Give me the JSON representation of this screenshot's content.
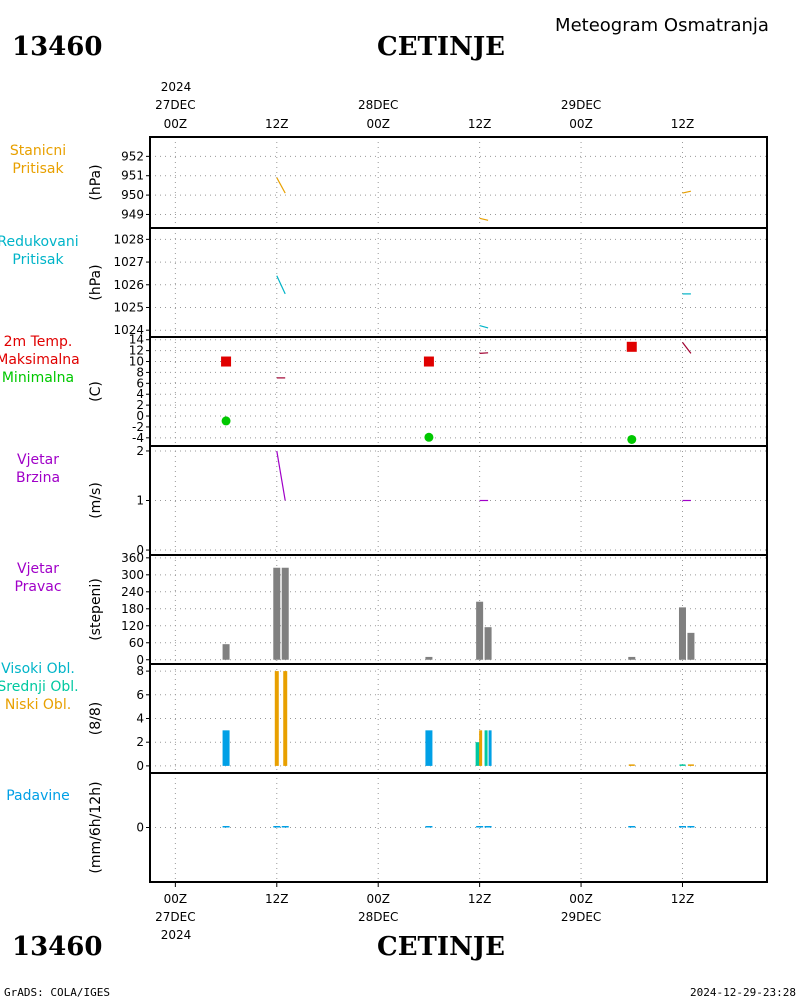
{
  "header": {
    "product": "Meteogram Osmatranja",
    "station_id": "13460",
    "station_name": "CETINJE"
  },
  "footer": {
    "station_id": "13460",
    "station_name": "CETINJE",
    "credit": "GrADS: COLA/IGES",
    "timestamp": "2024-12-29-23:28"
  },
  "time_axis": {
    "top_year": "2024",
    "bottom_year": "2024",
    "ticks": [
      {
        "t": 0,
        "label": "00Z",
        "date": "27DEC"
      },
      {
        "t": 12,
        "label": "12Z",
        "date": ""
      },
      {
        "t": 24,
        "label": "00Z",
        "date": "28DEC"
      },
      {
        "t": 36,
        "label": "12Z",
        "date": ""
      },
      {
        "t": 48,
        "label": "00Z",
        "date": "29DEC"
      },
      {
        "t": 60,
        "label": "12Z",
        "date": ""
      }
    ],
    "range_hours": [
      -3,
      70
    ]
  },
  "colors": {
    "orange": "#e8a000",
    "cyan": "#00b4c8",
    "red": "#e00000",
    "green": "#00c800",
    "purple": "#a000c8",
    "gray": "#808080",
    "blue": "#00a0e6",
    "teal": "#00c8a0"
  },
  "chart_data": [
    {
      "id": "station_pressure",
      "type": "line",
      "labels": [
        {
          "text": "Stanicni",
          "color": "#e8a000"
        },
        {
          "text": "Pritisak",
          "color": "#e8a000"
        }
      ],
      "ylabel": "(hPa)",
      "ylim": [
        948.3,
        953.0
      ],
      "yticks": [
        949,
        950,
        951,
        952
      ],
      "series": [
        {
          "color": "#e8a000",
          "segments": [
            [
              [
                12,
                950.9
              ],
              [
                13,
                950.1
              ]
            ],
            [
              [
                36,
                948.8
              ],
              [
                37,
                948.7
              ]
            ],
            [
              [
                60,
                950.1
              ],
              [
                61,
                950.2
              ]
            ]
          ]
        }
      ]
    },
    {
      "id": "reduced_pressure",
      "type": "line",
      "labels": [
        {
          "text": "Redukovani",
          "color": "#00b4c8"
        },
        {
          "text": "Pritisak",
          "color": "#00b4c8"
        }
      ],
      "ylabel": "(hPa)",
      "ylim": [
        1023.7,
        1028.5
      ],
      "yticks": [
        1024,
        1025,
        1026,
        1027,
        1028
      ],
      "series": [
        {
          "color": "#00b4c8",
          "segments": [
            [
              [
                12,
                1026.4
              ],
              [
                13,
                1025.6
              ]
            ],
            [
              [
                36,
                1024.2
              ],
              [
                37,
                1024.1
              ]
            ],
            [
              [
                60,
                1025.6
              ],
              [
                61,
                1025.6
              ]
            ]
          ]
        }
      ]
    },
    {
      "id": "temperature",
      "type": "line+markers",
      "labels": [
        {
          "text": "2m Temp.",
          "color": "#e00000"
        },
        {
          "text": "Maksimalna",
          "color": "#e00000"
        },
        {
          "text": "Minimalna",
          "color": "#00c800"
        }
      ],
      "ylabel": "(C)",
      "ylim": [
        -5.5,
        14.5
      ],
      "yticks": [
        -4,
        -2,
        0,
        2,
        4,
        6,
        8,
        10,
        12,
        14
      ],
      "series": [
        {
          "color": "#a00030",
          "segments": [
            [
              [
                12,
                7
              ],
              [
                13,
                7
              ]
            ],
            [
              [
                36,
                11.5
              ],
              [
                37,
                11.6
              ]
            ],
            [
              [
                60,
                13.5
              ],
              [
                61,
                11.5
              ]
            ]
          ]
        }
      ],
      "max": {
        "color": "#e00000",
        "points": [
          [
            6,
            10
          ],
          [
            30,
            10
          ],
          [
            54,
            12.7
          ]
        ]
      },
      "min": {
        "color": "#00c800",
        "points": [
          [
            6,
            -0.9
          ],
          [
            30,
            -3.9
          ],
          [
            54,
            -4.3
          ]
        ]
      }
    },
    {
      "id": "wind_speed",
      "type": "line",
      "labels": [
        {
          "text": "Vjetar",
          "color": "#a000c8"
        },
        {
          "text": "Brzina",
          "color": "#a000c8"
        }
      ],
      "ylabel": "(m/s)",
      "ylim": [
        -0.1,
        2.1
      ],
      "yticks": [
        0,
        1,
        2
      ],
      "series": [
        {
          "color": "#a000c8",
          "segments": [
            [
              [
                12,
                2
              ],
              [
                13,
                1
              ]
            ],
            [
              [
                36,
                1
              ],
              [
                37,
                1
              ]
            ],
            [
              [
                60,
                1
              ],
              [
                61,
                1
              ]
            ]
          ]
        }
      ]
    },
    {
      "id": "wind_direction",
      "type": "bar",
      "labels": [
        {
          "text": "Vjetar",
          "color": "#a000c8"
        },
        {
          "text": "Pravac",
          "color": "#a000c8"
        }
      ],
      "ylabel": "(stepeni)",
      "ylim": [
        -15,
        370
      ],
      "yticks": [
        0,
        60,
        120,
        180,
        240,
        300,
        360
      ],
      "bars": [
        {
          "t": 6,
          "value": 55,
          "color": "#808080"
        },
        {
          "t": 12,
          "value": 325,
          "color": "#808080"
        },
        {
          "t": 13,
          "value": 325,
          "color": "#808080"
        },
        {
          "t": 30,
          "value": 10,
          "color": "#808080"
        },
        {
          "t": 36,
          "value": 205,
          "color": "#808080"
        },
        {
          "t": 37,
          "value": 115,
          "color": "#808080"
        },
        {
          "t": 54,
          "value": 10,
          "color": "#808080"
        },
        {
          "t": 60,
          "value": 185,
          "color": "#808080"
        },
        {
          "t": 61,
          "value": 95,
          "color": "#808080"
        }
      ]
    },
    {
      "id": "clouds",
      "type": "bar",
      "labels": [
        {
          "text": "Visoki Obl.",
          "color": "#00b4c8"
        },
        {
          "text": "Srednji Obl.",
          "color": "#00c8a0"
        },
        {
          "text": "Niski Obl.",
          "color": "#e8a000"
        }
      ],
      "ylabel": "(8/8)",
      "ylim": [
        -0.6,
        8.6
      ],
      "yticks": [
        0,
        2,
        4,
        6,
        8
      ],
      "bars": [
        {
          "t": 6,
          "value": 3,
          "color": "#00a0e6",
          "width": 7
        },
        {
          "t": 12,
          "value": 8,
          "color": "#e8a000",
          "width": 4,
          "offset": 0
        },
        {
          "t": 13,
          "value": 8,
          "color": "#e8a000",
          "width": 4,
          "offset": 0
        },
        {
          "t": 30,
          "value": 3,
          "color": "#00a0e6",
          "width": 7
        },
        {
          "t": 36,
          "value": 2,
          "color": "#00c8a0",
          "width": 4,
          "offset": -2
        },
        {
          "t": 36,
          "value": 3,
          "color": "#e8a000",
          "width": 3,
          "offset": 1
        },
        {
          "t": 37,
          "value": 3,
          "color": "#00c8a0",
          "width": 3,
          "offset": -2
        },
        {
          "t": 37,
          "value": 3,
          "color": "#00a0e6",
          "width": 3,
          "offset": 2
        },
        {
          "t": 54,
          "value": 0.1,
          "color": "#e8a000",
          "width": 6
        },
        {
          "t": 60,
          "value": 0.1,
          "color": "#00c8a0",
          "width": 6
        },
        {
          "t": 61,
          "value": 0.1,
          "color": "#e8a000",
          "width": 6
        }
      ]
    },
    {
      "id": "precipitation",
      "type": "bar",
      "labels": [
        {
          "text": "Padavine",
          "color": "#00a0e6"
        }
      ],
      "ylabel": "(mm/6h/12h)",
      "ylim": [
        -2,
        2
      ],
      "yticks": [
        0
      ],
      "bars": [
        {
          "t": 6,
          "value": 0,
          "color": "#00a0e6"
        },
        {
          "t": 12,
          "value": 0,
          "color": "#00a0e6"
        },
        {
          "t": 13,
          "value": 0,
          "color": "#00a0e6"
        },
        {
          "t": 30,
          "value": 0,
          "color": "#00a0e6"
        },
        {
          "t": 36,
          "value": 0,
          "color": "#00a0e6"
        },
        {
          "t": 37,
          "value": 0,
          "color": "#00a0e6"
        },
        {
          "t": 54,
          "value": 0,
          "color": "#00a0e6"
        },
        {
          "t": 60,
          "value": 0,
          "color": "#00a0e6"
        },
        {
          "t": 61,
          "value": 0,
          "color": "#00a0e6"
        }
      ]
    }
  ]
}
